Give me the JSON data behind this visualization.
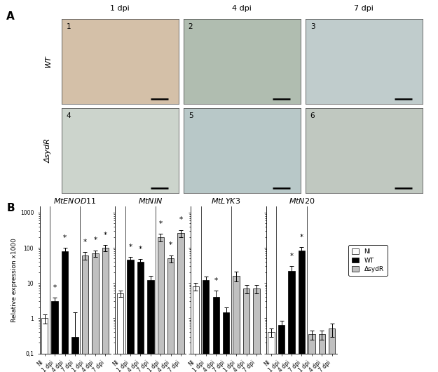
{
  "figure_bg": "white",
  "panel_A_label": "A",
  "panel_B_label": "B",
  "image_labels_top": [
    "1 dpi",
    "4 dpi",
    "7 dpi"
  ],
  "image_labels_left": [
    "WT",
    "ΔsydR"
  ],
  "image_panel_numbers": [
    "1",
    "2",
    "3",
    "4",
    "5",
    "6"
  ],
  "image_colors": [
    "#d4c0a8",
    "#b0bdb0",
    "#c0cccc",
    "#ccd4cc",
    "#b8c8c8",
    "#c0c8c0"
  ],
  "genes": [
    "MtENOD11",
    "MtNIN",
    "MtLYK3",
    "MtN20"
  ],
  "x_labels": [
    "NI",
    "1 dpi",
    "4 dpi",
    "7 dpi",
    "1 dpi",
    "4 dpi",
    "7 dpi"
  ],
  "bar_group_colors": [
    "white",
    "black",
    "black",
    "black",
    "silver",
    "silver",
    "silver"
  ],
  "legend_labels": [
    "NI",
    "WT",
    "ΔsydR"
  ],
  "legend_colors": [
    "white",
    "black",
    "silver"
  ],
  "ylabel": "Relative expression x1000",
  "MtENOD11": {
    "values": [
      1.0,
      3.0,
      80.0,
      0.3,
      60.0,
      70.0,
      100.0
    ],
    "errors": [
      0.3,
      0.8,
      20.0,
      1.2,
      15.0,
      15.0,
      20.0
    ],
    "stars": [
      false,
      true,
      true,
      false,
      true,
      true,
      true
    ]
  },
  "MtNIN": {
    "values": [
      5.0,
      45.0,
      40.0,
      12.0,
      200.0,
      50.0,
      260.0
    ],
    "errors": [
      1.0,
      10.0,
      8.0,
      4.0,
      50.0,
      12.0,
      60.0
    ],
    "stars": [
      false,
      true,
      true,
      false,
      true,
      true,
      true
    ]
  },
  "MtLYK3": {
    "values": [
      8.0,
      12.0,
      4.0,
      1.5,
      16.0,
      7.0,
      7.0
    ],
    "errors": [
      2.0,
      3.0,
      2.0,
      0.5,
      5.0,
      2.0,
      2.0
    ],
    "stars": [
      false,
      false,
      true,
      false,
      false,
      false,
      false
    ]
  },
  "MtN20": {
    "values": [
      0.4,
      0.65,
      22.0,
      85.0,
      0.35,
      0.35,
      0.5
    ],
    "errors": [
      0.1,
      0.2,
      8.0,
      20.0,
      0.1,
      0.1,
      0.2
    ],
    "stars": [
      false,
      false,
      true,
      true,
      false,
      false,
      false
    ]
  }
}
